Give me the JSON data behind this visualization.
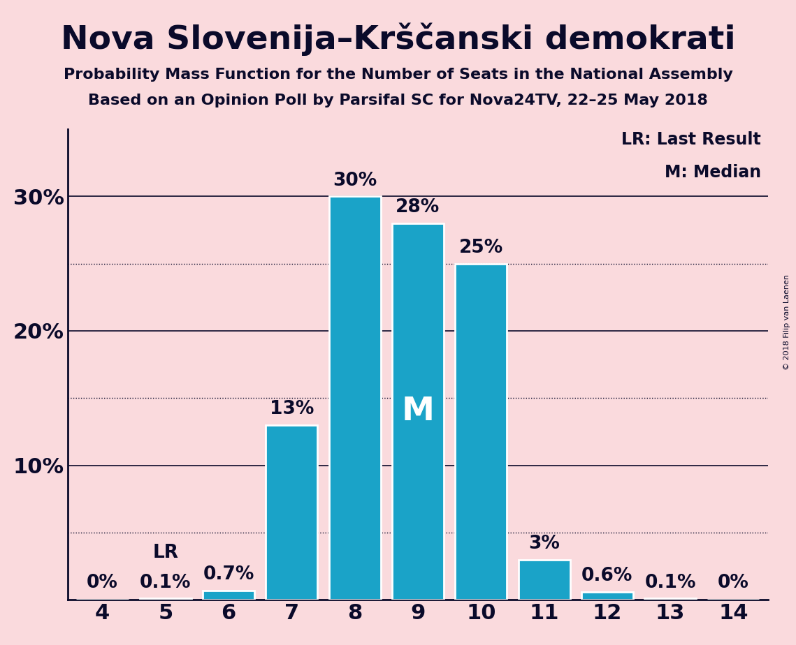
{
  "title": "Nova Slovenija–Krščanski demokrati",
  "subtitle1": "Probability Mass Function for the Number of Seats in the National Assembly",
  "subtitle2": "Based on an Opinion Poll by Parsifal SC for Nova24TV, 22–25 May 2018",
  "categories": [
    4,
    5,
    6,
    7,
    8,
    9,
    10,
    11,
    12,
    13,
    14
  ],
  "values": [
    0.0,
    0.1,
    0.7,
    13.0,
    30.0,
    28.0,
    25.0,
    3.0,
    0.6,
    0.1,
    0.0
  ],
  "bar_color": "#1AA3C8",
  "background_color": "#FADADD",
  "bar_labels": [
    "0%",
    "0.1%",
    "0.7%",
    "13%",
    "30%",
    "28%",
    "25%",
    "3%",
    "0.6%",
    "0.1%",
    "0%"
  ],
  "lr_seat": 5,
  "median_seat": 9,
  "legend_lr": "LR: Last Result",
  "legend_m": "M: Median",
  "yticks": [
    10,
    20,
    30
  ],
  "ylim": [
    0,
    35
  ],
  "dotted_lines": [
    5,
    15,
    25
  ],
  "solid_lines": [
    10,
    20,
    30
  ],
  "copyright": "© 2018 Filip van Laenen",
  "title_color": "#0A0A2A",
  "axis_color": "#0A0A2A"
}
